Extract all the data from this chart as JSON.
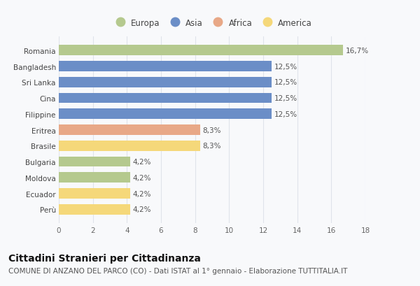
{
  "categories": [
    "Romania",
    "Bangladesh",
    "Sri Lanka",
    "Cina",
    "Filippine",
    "Eritrea",
    "Brasile",
    "Bulgaria",
    "Moldova",
    "Ecuador",
    "Perù"
  ],
  "values": [
    16.7,
    12.5,
    12.5,
    12.5,
    12.5,
    8.3,
    8.3,
    4.2,
    4.2,
    4.2,
    4.2
  ],
  "colors": [
    "#b5c98e",
    "#6b8ec7",
    "#6b8ec7",
    "#6b8ec7",
    "#6b8ec7",
    "#e8a887",
    "#f5d87a",
    "#b5c98e",
    "#b5c98e",
    "#f5d87a",
    "#f5d87a"
  ],
  "labels": [
    "16,7%",
    "12,5%",
    "12,5%",
    "12,5%",
    "12,5%",
    "8,3%",
    "8,3%",
    "4,2%",
    "4,2%",
    "4,2%",
    "4,2%"
  ],
  "legend_labels": [
    "Europa",
    "Asia",
    "Africa",
    "America"
  ],
  "legend_colors": [
    "#b5c98e",
    "#6b8ec7",
    "#e8a887",
    "#f5d87a"
  ],
  "xlim": [
    0,
    18
  ],
  "xticks": [
    0,
    2,
    4,
    6,
    8,
    10,
    12,
    14,
    16,
    18
  ],
  "title": "Cittadini Stranieri per Cittadinanza",
  "subtitle": "COMUNE DI ANZANO DEL PARCO (CO) - Dati ISTAT al 1° gennaio - Elaborazione TUTTITALIA.IT",
  "bg_color": "#f8f9fb",
  "grid_color": "#e0e4ea",
  "bar_height": 0.65,
  "title_fontsize": 10,
  "subtitle_fontsize": 7.5,
  "label_fontsize": 7.5,
  "tick_fontsize": 7.5,
  "legend_fontsize": 8.5
}
